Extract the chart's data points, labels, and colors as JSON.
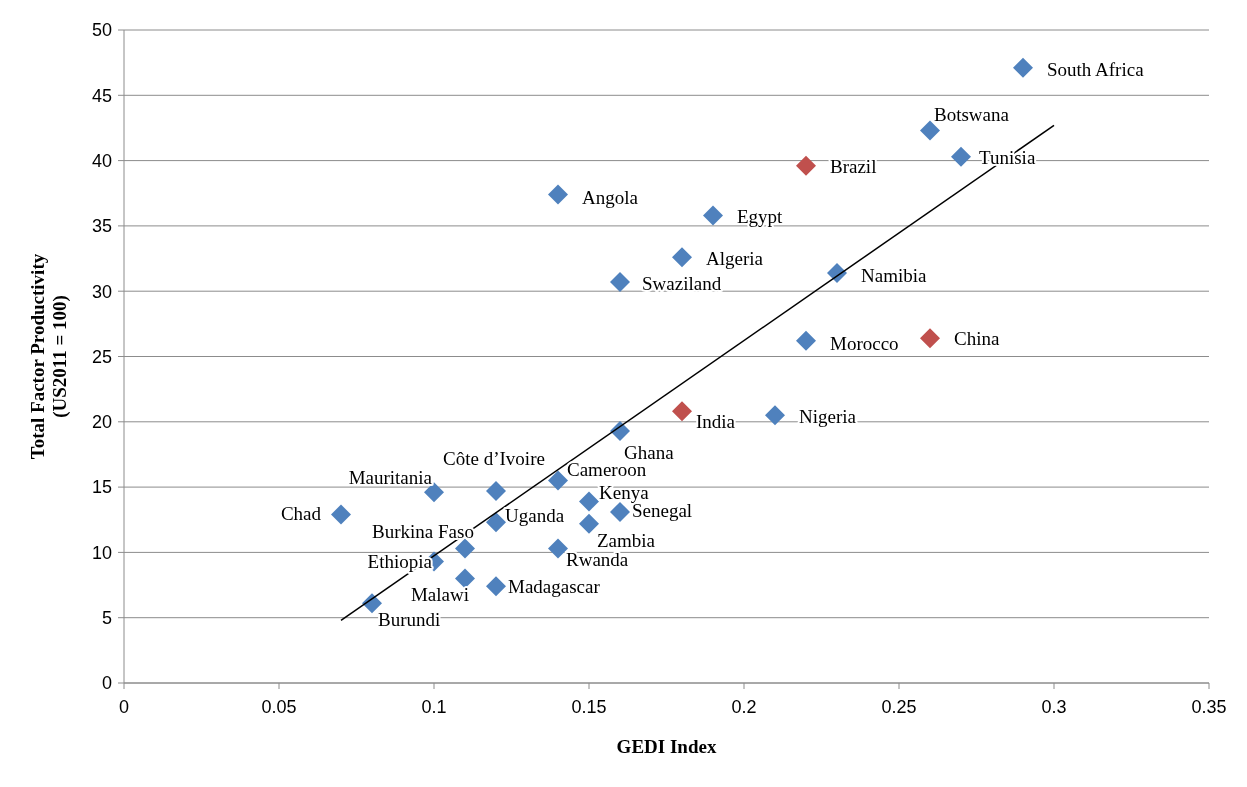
{
  "chart_data": {
    "type": "scatter",
    "xlabel": "GEDI Index",
    "ylabel": "Total Factor Productivity (US2011 = 100)",
    "xlim": [
      0,
      0.35
    ],
    "xticks": [
      0,
      0.05,
      0.1,
      0.15,
      0.2,
      0.25,
      0.3,
      0.35
    ],
    "ylim": [
      0,
      50
    ],
    "yticks": [
      0,
      5,
      10,
      15,
      20,
      25,
      30,
      35,
      40,
      45,
      50
    ],
    "grid": "y",
    "marker": "diamond",
    "series": [
      {
        "color": "#4f81bd",
        "x": [
          0.29,
          0.26,
          0.27,
          0.14,
          0.19,
          0.18,
          0.23,
          0.16,
          0.22,
          0.21,
          0.16,
          0.14,
          0.12,
          0.1,
          0.15,
          0.16,
          0.07,
          0.12,
          0.15,
          0.11,
          0.14,
          0.1,
          0.11,
          0.12,
          0.08
        ],
        "values": [
          47.1,
          42.3,
          40.3,
          37.4,
          35.8,
          32.6,
          31.4,
          30.7,
          26.2,
          20.5,
          19.3,
          15.5,
          14.7,
          14.6,
          13.9,
          13.1,
          12.9,
          12.3,
          12.2,
          10.3,
          10.3,
          9.3,
          8.0,
          7.4,
          6.1
        ]
      },
      {
        "color": "#c0504d",
        "x": [
          0.22,
          0.26,
          0.18
        ],
        "values": [
          39.6,
          26.4,
          20.8
        ]
      },
      {
        "type": "line",
        "color": "#000000",
        "marker": "none",
        "x": [
          0.07,
          0.3
        ],
        "values": [
          4.8,
          42.7
        ]
      }
    ],
    "annotations": [
      {
        "text": "South Africa",
        "x": 0.29,
        "y": 47.1
      },
      {
        "text": "Botswana",
        "x": 0.26,
        "y": 42.3
      },
      {
        "text": "Tunisia",
        "x": 0.27,
        "y": 40.3
      },
      {
        "text": "Brazil",
        "x": 0.22,
        "y": 39.6
      },
      {
        "text": "Angola",
        "x": 0.14,
        "y": 37.4
      },
      {
        "text": "Egypt",
        "x": 0.19,
        "y": 35.8
      },
      {
        "text": "Algeria",
        "x": 0.18,
        "y": 32.6
      },
      {
        "text": "Namibia",
        "x": 0.23,
        "y": 31.4
      },
      {
        "text": "Swaziland",
        "x": 0.16,
        "y": 30.7
      },
      {
        "text": "Morocco",
        "x": 0.22,
        "y": 26.2
      },
      {
        "text": "China",
        "x": 0.26,
        "y": 26.4
      },
      {
        "text": "India",
        "x": 0.18,
        "y": 20.8
      },
      {
        "text": "Nigeria",
        "x": 0.21,
        "y": 20.5
      },
      {
        "text": "Ghana",
        "x": 0.16,
        "y": 19.3
      },
      {
        "text": "Cameroon",
        "x": 0.14,
        "y": 15.5
      },
      {
        "text": "Côte d’Ivoire",
        "x": 0.12,
        "y": 14.7
      },
      {
        "text": "Mauritania",
        "x": 0.1,
        "y": 14.6
      },
      {
        "text": "Kenya",
        "x": 0.15,
        "y": 13.9
      },
      {
        "text": "Senegal",
        "x": 0.16,
        "y": 13.1
      },
      {
        "text": "Chad",
        "x": 0.07,
        "y": 12.9
      },
      {
        "text": "Uganda",
        "x": 0.12,
        "y": 12.3
      },
      {
        "text": "Zambia",
        "x": 0.15,
        "y": 12.2
      },
      {
        "text": "Burkina Faso",
        "x": 0.11,
        "y": 10.3
      },
      {
        "text": "Rwanda",
        "x": 0.14,
        "y": 10.3
      },
      {
        "text": "Ethiopia",
        "x": 0.1,
        "y": 9.3
      },
      {
        "text": "Malawi",
        "x": 0.11,
        "y": 8.0
      },
      {
        "text": "Madagascar",
        "x": 0.12,
        "y": 7.4
      },
      {
        "text": "Burundi",
        "x": 0.08,
        "y": 6.1
      }
    ]
  }
}
